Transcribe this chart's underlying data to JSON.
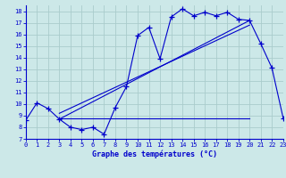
{
  "title": "Graphe des températures (°C)",
  "bg_color": "#cce8e8",
  "grid_color": "#aacccc",
  "line_color": "#0000cc",
  "xlim": [
    0,
    23
  ],
  "ylim": [
    7,
    18.5
  ],
  "yticks": [
    7,
    8,
    9,
    10,
    11,
    12,
    13,
    14,
    15,
    16,
    17,
    18
  ],
  "xticks": [
    0,
    1,
    2,
    3,
    4,
    5,
    6,
    7,
    8,
    9,
    10,
    11,
    12,
    13,
    14,
    15,
    16,
    17,
    18,
    19,
    20,
    21,
    22,
    23
  ],
  "temp_curve": [
    [
      0,
      8.6
    ],
    [
      1,
      10.1
    ],
    [
      2,
      9.6
    ],
    [
      3,
      8.7
    ],
    [
      4,
      8.0
    ],
    [
      5,
      7.8
    ],
    [
      6,
      8.0
    ],
    [
      7,
      7.4
    ],
    [
      8,
      9.7
    ],
    [
      9,
      11.5
    ],
    [
      10,
      15.9
    ],
    [
      11,
      16.6
    ],
    [
      12,
      13.9
    ],
    [
      13,
      17.5
    ],
    [
      14,
      18.2
    ],
    [
      15,
      17.6
    ],
    [
      16,
      17.9
    ],
    [
      17,
      17.6
    ],
    [
      18,
      17.9
    ],
    [
      19,
      17.3
    ],
    [
      20,
      17.2
    ],
    [
      21,
      15.2
    ],
    [
      22,
      13.1
    ],
    [
      23,
      8.8
    ]
  ],
  "horiz_line": [
    [
      3,
      8.8
    ],
    [
      20,
      8.8
    ]
  ],
  "trend_line1": [
    [
      3,
      8.7
    ],
    [
      20,
      17.2
    ]
  ],
  "trend_line2": [
    [
      3,
      9.2
    ],
    [
      20,
      16.8
    ]
  ]
}
